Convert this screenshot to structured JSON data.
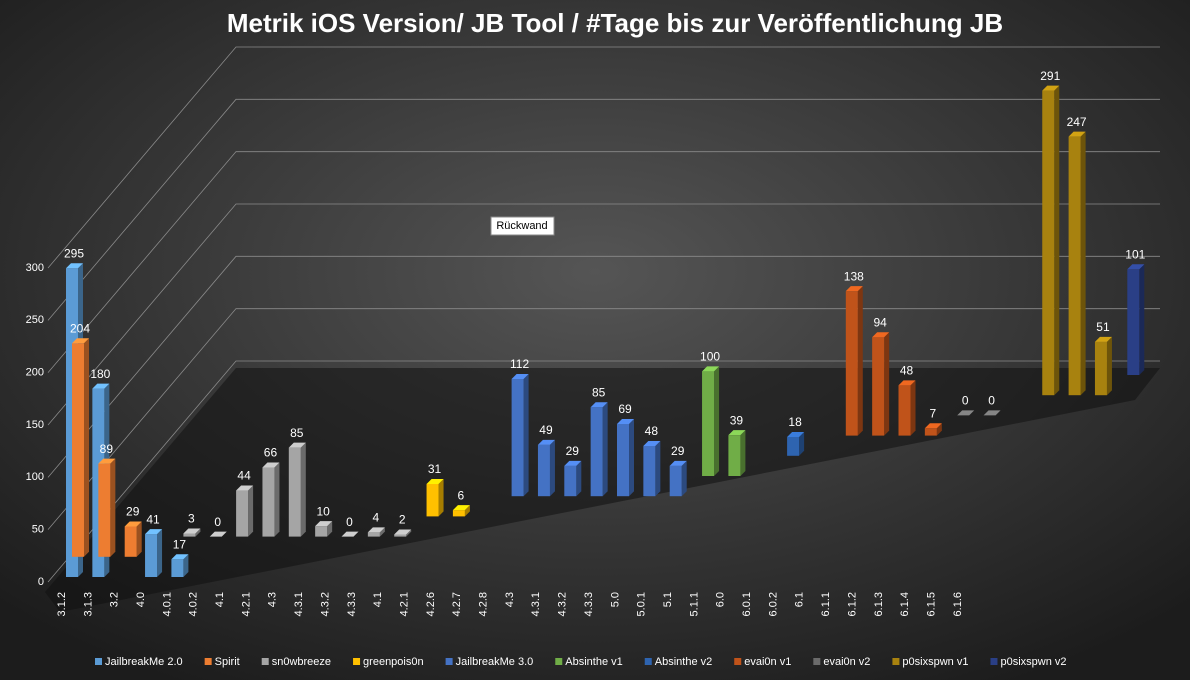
{
  "chart_data": {
    "type": "bar3d",
    "title": "Metrik iOS Version/ JB  Tool /  #Tage bis zur Veröffentlichung JB",
    "annotation": "Rückwand",
    "categories": [
      "3.1.2",
      "3.1.3",
      "3.2",
      "4.0",
      "4.0.1",
      "4.0.2",
      "4.1",
      "4.2.1",
      "4.3",
      "4.3.1",
      "4.3.2",
      "4.3.3",
      "4.1",
      "4.2.1",
      "4.2.6",
      "4.2.7",
      "4.2.8",
      "4.3",
      "4.3.1",
      "4.3.2",
      "4.3.3",
      "5.0",
      "5.0.1",
      "5.1",
      "5.1.1",
      "6.0",
      "6.0.1",
      "6.0.2",
      "6.1",
      "6.1.1",
      "6.1.2",
      "6.1.3",
      "6.1.4",
      "6.1.5",
      "6.1.6",
      null,
      null,
      null,
      null
    ],
    "ylim": [
      0,
      300
    ],
    "yticks": [
      0,
      50,
      100,
      150,
      200,
      250,
      300
    ],
    "grid": true,
    "series": [
      {
        "name": "JailbreakMe 2.0",
        "color": "#5b9bd5",
        "values": [
          295,
          180,
          null,
          41,
          17,
          null,
          null,
          null,
          null,
          null,
          null,
          null,
          null,
          null,
          null,
          null,
          null,
          null,
          null,
          null,
          null,
          null,
          null,
          null,
          null,
          null,
          null,
          null,
          null,
          null,
          null,
          null,
          null,
          null,
          null,
          null,
          null,
          null,
          null
        ]
      },
      {
        "name": "Spirit",
        "color": "#ed7d31",
        "values": [
          204,
          89,
          29,
          null,
          null,
          null,
          null,
          null,
          null,
          null,
          null,
          null,
          null,
          null,
          null,
          null,
          null,
          null,
          null,
          null,
          null,
          null,
          null,
          null,
          null,
          null,
          null,
          null,
          null,
          null,
          null,
          null,
          null,
          null,
          null,
          null,
          null,
          null,
          null
        ]
      },
      {
        "name": "sn0wbreeze",
        "color": "#a5a5a5",
        "values": [
          null,
          null,
          null,
          null,
          3,
          0,
          44,
          66,
          85,
          10,
          0,
          4,
          2,
          null,
          null,
          null,
          null,
          null,
          null,
          null,
          null,
          null,
          null,
          null,
          null,
          null,
          null,
          null,
          null,
          null,
          null,
          null,
          null,
          null,
          null,
          null,
          null,
          null,
          null
        ]
      },
      {
        "name": "greenpois0n",
        "color": "#ffc000",
        "values": [
          null,
          null,
          null,
          null,
          null,
          null,
          null,
          null,
          null,
          null,
          null,
          null,
          null,
          31,
          6,
          null,
          null,
          null,
          null,
          null,
          null,
          null,
          null,
          null,
          null,
          null,
          null,
          null,
          null,
          null,
          null,
          null,
          null,
          null,
          null,
          null,
          null,
          null,
          null
        ]
      },
      {
        "name": "JailbreakMe 3.0",
        "color": "#4472c4",
        "values": [
          null,
          null,
          null,
          null,
          null,
          null,
          null,
          null,
          null,
          null,
          null,
          null,
          null,
          null,
          null,
          null,
          112,
          49,
          29,
          85,
          69,
          48,
          29,
          null,
          null,
          null,
          null,
          null,
          null,
          null,
          null,
          null,
          null,
          null,
          null,
          null,
          null,
          null,
          null
        ]
      },
      {
        "name": "Absinthe v1",
        "color": "#70ad47",
        "values": [
          null,
          null,
          null,
          null,
          null,
          null,
          null,
          null,
          null,
          null,
          null,
          null,
          null,
          null,
          null,
          null,
          null,
          null,
          null,
          null,
          null,
          null,
          null,
          100,
          39,
          null,
          null,
          null,
          null,
          null,
          null,
          null,
          null,
          null,
          null,
          null,
          null,
          null,
          null
        ]
      },
      {
        "name": "Absinthe v2",
        "color": "#2e64b0",
        "values": [
          null,
          null,
          null,
          null,
          null,
          null,
          null,
          null,
          null,
          null,
          null,
          null,
          null,
          null,
          null,
          null,
          null,
          null,
          null,
          null,
          null,
          null,
          null,
          null,
          null,
          null,
          18,
          null,
          null,
          null,
          null,
          null,
          null,
          null,
          null,
          null,
          null,
          null,
          null
        ]
      },
      {
        "name": "evai0n v1",
        "color": "#c0531a",
        "values": [
          null,
          null,
          null,
          null,
          null,
          null,
          null,
          null,
          null,
          null,
          null,
          null,
          null,
          null,
          null,
          null,
          null,
          null,
          null,
          null,
          null,
          null,
          null,
          null,
          null,
          null,
          null,
          null,
          138,
          94,
          48,
          7,
          null,
          null,
          null,
          null,
          null,
          null,
          null
        ]
      },
      {
        "name": "evai0n v2",
        "color": "#6b6b6b",
        "values": [
          null,
          null,
          null,
          null,
          null,
          null,
          null,
          null,
          null,
          null,
          null,
          null,
          null,
          null,
          null,
          null,
          null,
          null,
          null,
          null,
          null,
          null,
          null,
          null,
          null,
          null,
          null,
          null,
          null,
          null,
          null,
          null,
          0,
          0,
          null,
          null,
          null,
          null,
          null
        ]
      },
      {
        "name": "p0sixspwn v1",
        "color": "#a8820f",
        "values": [
          null,
          null,
          null,
          null,
          null,
          null,
          null,
          null,
          null,
          null,
          null,
          null,
          null,
          null,
          null,
          null,
          null,
          null,
          null,
          null,
          null,
          null,
          null,
          null,
          null,
          null,
          null,
          null,
          null,
          null,
          null,
          null,
          null,
          null,
          null,
          291,
          247,
          51,
          null
        ]
      },
      {
        "name": "p0sixspwn v2",
        "color": "#2a3f86",
        "values": [
          null,
          null,
          null,
          null,
          null,
          null,
          null,
          null,
          null,
          null,
          null,
          null,
          null,
          null,
          null,
          null,
          null,
          null,
          null,
          null,
          null,
          null,
          null,
          null,
          null,
          null,
          null,
          null,
          null,
          null,
          null,
          null,
          null,
          null,
          null,
          null,
          null,
          null,
          101
        ]
      }
    ]
  }
}
